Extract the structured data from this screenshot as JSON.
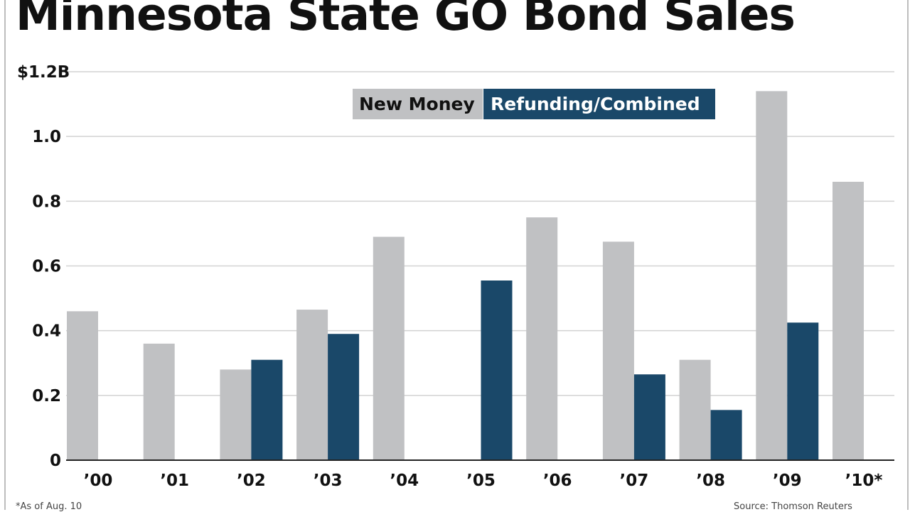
{
  "colors": {
    "new_money": "#c0c1c3",
    "refunding": "#1a4869",
    "grid": "#d2d2d2",
    "axis": "#222222"
  },
  "footnote": "*As of Aug. 10",
  "source": "Source: Thomson Reuters",
  "chart_data": {
    "type": "bar",
    "title": "Minnesota State GO Bond Sales",
    "categories": [
      "’00",
      "’01",
      "’02",
      "’03",
      "’04",
      "’05",
      "’06",
      "’07",
      "’08",
      "’09",
      "’10*"
    ],
    "series": [
      {
        "name": "New Money",
        "values": [
          0.46,
          0.36,
          0.28,
          0.465,
          0.69,
          0,
          0.75,
          0.675,
          0.31,
          1.14,
          0.86
        ]
      },
      {
        "name": "Refunding/Combined",
        "values": [
          0,
          0,
          0.31,
          0.39,
          0,
          0.555,
          0,
          0.265,
          0.155,
          0.425,
          0
        ]
      }
    ],
    "yticks": [
      {
        "value": 0,
        "label": "0"
      },
      {
        "value": 0.2,
        "label": "0.2"
      },
      {
        "value": 0.4,
        "label": "0.4"
      },
      {
        "value": 0.6,
        "label": "0.6"
      },
      {
        "value": 0.8,
        "label": "0.8"
      },
      {
        "value": 1.0,
        "label": "1.0"
      },
      {
        "value": 1.2,
        "label": "$1.2B"
      }
    ],
    "ylim": [
      0,
      1.2
    ],
    "grid": true,
    "legend_position": "top-center"
  }
}
